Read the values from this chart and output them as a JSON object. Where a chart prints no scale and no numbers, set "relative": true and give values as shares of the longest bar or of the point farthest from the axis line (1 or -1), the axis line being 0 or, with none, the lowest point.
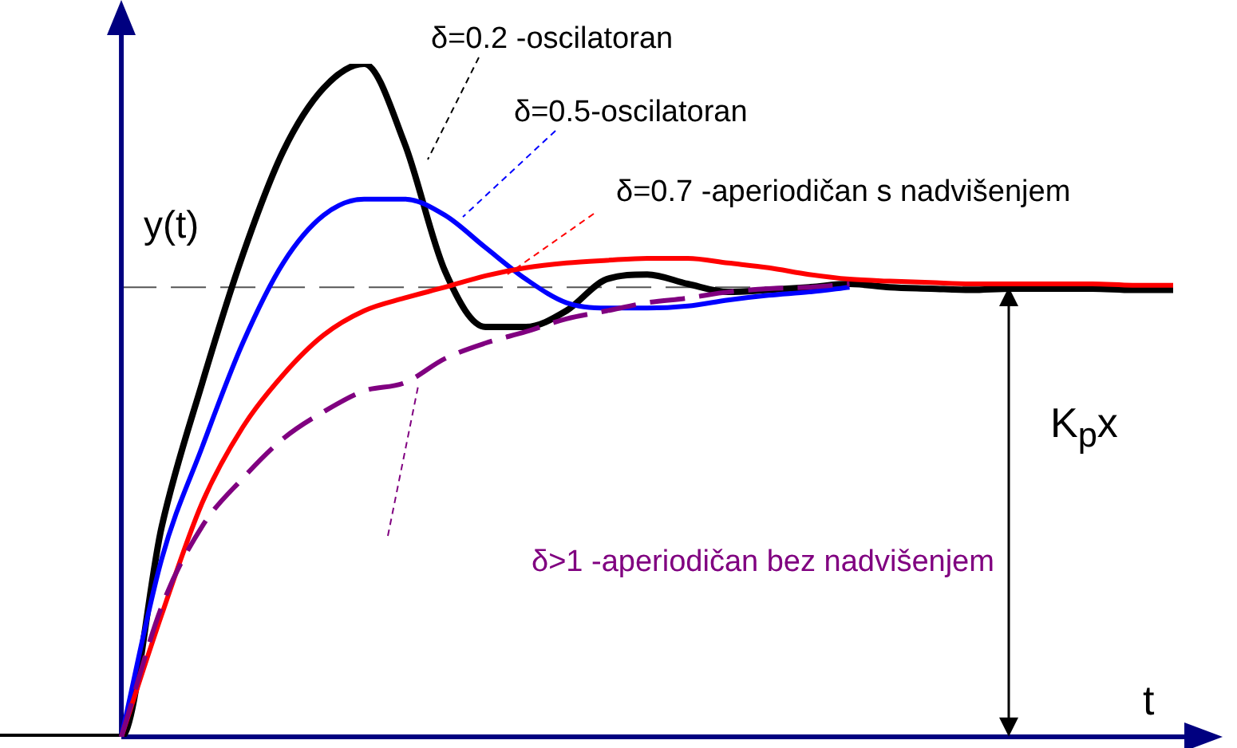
{
  "chart_data": {
    "type": "line",
    "relative": true,
    "xlabel": "t",
    "ylabel": "y(t)",
    "categories": [
      null,
      null,
      null,
      null,
      null,
      null,
      null,
      null,
      null,
      null,
      null,
      null,
      null,
      null,
      null,
      null,
      null,
      null,
      null,
      null,
      null,
      null,
      null,
      null,
      null,
      null,
      null,
      null,
      null,
      null
    ],
    "series": [
      {
        "name": "δ=0.2 -oscilatoran",
        "color": "#000000",
        "line_style": "solid",
        "values": [
          0,
          0,
          0,
          0,
          0.313,
          0.526,
          0.716,
          0.87,
          0.964,
          1,
          0.882,
          0.692,
          0.609,
          0.609,
          0.633,
          0.68,
          0.687,
          0.673,
          0.661,
          0.664,
          0.668,
          0.673,
          0.668,
          0.666,
          0.664,
          0.666,
          0.666,
          0.666,
          0.664,
          0.664
        ]
      },
      {
        "name": "δ=0.5-oscilatoran",
        "color": "#0000ff",
        "line_style": "solid",
        "values": [
          null,
          null,
          null,
          0,
          0.265,
          0.431,
          0.585,
          0.704,
          0.775,
          0.799,
          0.799,
          0.775,
          0.727,
          0.68,
          0.645,
          0.637,
          0.637,
          0.64,
          0.649,
          0.656,
          0.661,
          0.668,
          null,
          null,
          null,
          null,
          null,
          null,
          null,
          null
        ]
      },
      {
        "name": "δ=0.7 -aperiodičan s nadvišenjem",
        "color": "#ff0000",
        "line_style": "solid",
        "values": [
          null,
          null,
          null,
          0,
          0.182,
          0.348,
          0.46,
          0.538,
          0.597,
          0.633,
          0.652,
          0.668,
          0.685,
          0.697,
          0.704,
          0.708,
          0.711,
          0.711,
          0.704,
          0.697,
          0.687,
          0.68,
          0.677,
          0.675,
          0.673,
          0.673,
          0.673,
          0.673,
          0.671,
          0.671
        ]
      },
      {
        "name": "δ>1 -aperiodičan bez nadvišenjem",
        "color": "#800080",
        "line_style": "dashed",
        "values": [
          null,
          null,
          null,
          0,
          0.194,
          0.313,
          0.384,
          0.443,
          0.483,
          0.514,
          0.526,
          0.562,
          0.585,
          0.602,
          0.621,
          0.633,
          0.645,
          0.652,
          0.661,
          0.666,
          0.668,
          0.673,
          null,
          null,
          null,
          null,
          null,
          null,
          null,
          null
        ]
      }
    ],
    "ref_lines": [
      {
        "axis": "y",
        "value": 0.668,
        "color": "#555555",
        "line_style": "dashed"
      }
    ],
    "annotations": [
      "K$_{p}$x"
    ]
  }
}
